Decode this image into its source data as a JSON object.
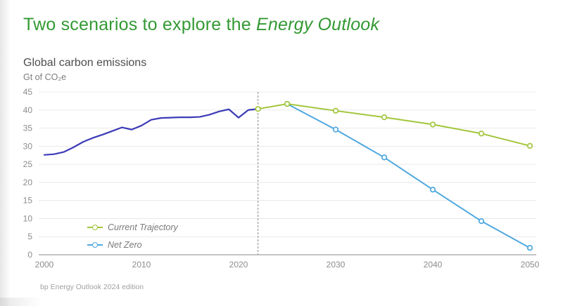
{
  "slide": {
    "title": {
      "prefix": "Two scenarios to explore the ",
      "emphasis": "Energy Outlook"
    },
    "subtitle": "Global carbon emissions",
    "unit_label": "Gt of CO₂e",
    "footer": "bp Energy Outlook 2024 edition"
  },
  "colors": {
    "title_green": "#339933",
    "historical_line": "#3b3bb8",
    "current_trajectory_line": "#a2c63b",
    "net_zero_line": "#4fa8e0",
    "gridline": "#e9e9e9",
    "axis_line": "#b0b0b0",
    "tick_label": "#8c8c8c",
    "forecast_divider": "#8a8a8a"
  },
  "chart_data": {
    "type": "line",
    "title": "Global carbon emissions",
    "ylabel": "Gt of CO₂e",
    "xlabel": "",
    "xlim": [
      2000,
      2050
    ],
    "ylim": [
      0,
      45
    ],
    "x_ticks": [
      2000,
      2010,
      2020,
      2030,
      2040,
      2050
    ],
    "y_ticks": [
      0,
      5,
      10,
      15,
      20,
      25,
      30,
      35,
      40,
      45
    ],
    "grid": "horizontal",
    "forecast_divider_year": 2022,
    "legend_position": "inside-bottom-left",
    "series": [
      {
        "name": "Historical",
        "color": "#3b3bb8",
        "markers": false,
        "in_legend": false,
        "points": [
          [
            2000,
            27.6
          ],
          [
            2001,
            27.8
          ],
          [
            2002,
            28.4
          ],
          [
            2003,
            29.7
          ],
          [
            2004,
            31.2
          ],
          [
            2005,
            32.3
          ],
          [
            2006,
            33.2
          ],
          [
            2007,
            34.2
          ],
          [
            2008,
            35.2
          ],
          [
            2009,
            34.6
          ],
          [
            2010,
            35.7
          ],
          [
            2011,
            37.3
          ],
          [
            2012,
            37.8
          ],
          [
            2013,
            37.9
          ],
          [
            2014,
            38.0
          ],
          [
            2015,
            38.0
          ],
          [
            2016,
            38.1
          ],
          [
            2017,
            38.7
          ],
          [
            2018,
            39.6
          ],
          [
            2019,
            40.2
          ],
          [
            2020,
            37.9
          ],
          [
            2021,
            40.0
          ],
          [
            2022,
            40.3
          ]
        ]
      },
      {
        "name": "Current Trajectory",
        "color": "#a2c63b",
        "markers": true,
        "in_legend": true,
        "points": [
          [
            2022,
            40.3
          ],
          [
            2025,
            41.7
          ],
          [
            2030,
            39.8
          ],
          [
            2035,
            38.0
          ],
          [
            2040,
            36.0
          ],
          [
            2045,
            33.5
          ],
          [
            2050,
            30.1
          ]
        ]
      },
      {
        "name": "Net Zero",
        "color": "#4fa8e0",
        "markers": true,
        "in_legend": true,
        "points": [
          [
            2025,
            41.7
          ],
          [
            2030,
            34.6
          ],
          [
            2035,
            26.9
          ],
          [
            2040,
            18.0
          ],
          [
            2045,
            9.3
          ],
          [
            2050,
            1.9
          ]
        ]
      }
    ]
  }
}
